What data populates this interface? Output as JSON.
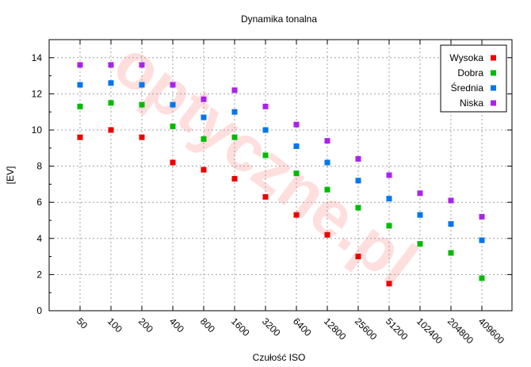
{
  "chart_data": {
    "type": "scatter",
    "title": "Dynamika tonalna",
    "xlabel": "Czułość ISO",
    "ylabel": "[EV]",
    "categories": [
      "50",
      "100",
      "200",
      "400",
      "800",
      "1600",
      "3200",
      "6400",
      "12800",
      "25600",
      "51200",
      "102400",
      "204800",
      "409600"
    ],
    "ylim": [
      0,
      15
    ],
    "yticks": [
      0,
      2,
      4,
      6,
      8,
      10,
      12,
      14
    ],
    "grid": true,
    "legend_position": "top-right",
    "watermark": "optyczne.pl",
    "series": [
      {
        "name": "Wysoka",
        "color": "#ee0000",
        "values": [
          9.6,
          10.0,
          9.6,
          8.2,
          7.8,
          7.3,
          6.3,
          5.3,
          4.2,
          3.0,
          1.5,
          null,
          null,
          null
        ]
      },
      {
        "name": "Dobra",
        "color": "#00bb00",
        "values": [
          11.3,
          11.5,
          11.4,
          10.2,
          9.5,
          9.6,
          8.6,
          7.6,
          6.7,
          5.7,
          4.7,
          3.7,
          3.2,
          1.8
        ]
      },
      {
        "name": "Średnia",
        "color": "#0077ee",
        "values": [
          12.5,
          12.6,
          12.5,
          11.4,
          10.7,
          11.0,
          10.0,
          9.1,
          8.2,
          7.2,
          6.2,
          5.3,
          4.8,
          3.9
        ]
      },
      {
        "name": "Niska",
        "color": "#aa22ee",
        "values": [
          13.6,
          13.6,
          13.6,
          12.5,
          11.7,
          12.2,
          11.3,
          10.3,
          9.4,
          8.4,
          7.5,
          6.5,
          6.1,
          5.2
        ]
      }
    ]
  }
}
